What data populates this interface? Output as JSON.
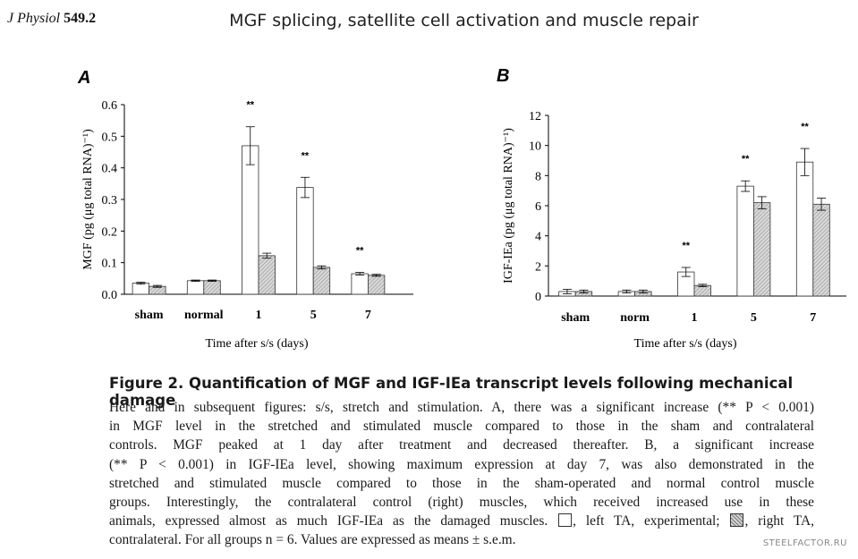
{
  "header": {
    "journal": "J Physiol",
    "volume": "549.2",
    "running_title": "MGF splicing, satellite cell activation and muscle repair"
  },
  "chart_data": [
    {
      "panel": "A",
      "type": "bar",
      "ylabel": "MGF (pg (μg total RNA)⁻¹)",
      "xlabel": "Time after s/s (days)",
      "categories": [
        "sham",
        "normal",
        "1",
        "5",
        "7"
      ],
      "ylim": [
        0,
        0.6
      ],
      "yticks": [
        "0.0",
        "0.1",
        "0.2",
        "0.3",
        "0.4",
        "0.5",
        "0.6"
      ],
      "series": [
        {
          "values": [
            0.035,
            0.043,
            0.47,
            0.338,
            0.065
          ],
          "errors": [
            0.003,
            0.002,
            0.06,
            0.032,
            0.004
          ],
          "fill": "#ffffff"
        },
        {
          "values": [
            0.025,
            0.043,
            0.122,
            0.085,
            0.06
          ],
          "errors": [
            0.003,
            0.002,
            0.008,
            0.005,
            0.003
          ],
          "fill": "#c8c8c8"
        }
      ],
      "significance": [
        null,
        null,
        "**",
        "**",
        "**"
      ]
    },
    {
      "panel": "B",
      "type": "bar",
      "ylabel": "IGF-IEa (pg (μg total RNA)⁻¹)",
      "xlabel": "Time after s/s (days)",
      "categories": [
        "sham",
        "norm",
        "1",
        "5",
        "7"
      ],
      "ylim": [
        0,
        12
      ],
      "yticks": [
        "0",
        "2",
        "4",
        "6",
        "8",
        "10",
        "12"
      ],
      "series": [
        {
          "values": [
            0.3,
            0.3,
            1.6,
            7.3,
            8.9
          ],
          "errors": [
            0.15,
            0.1,
            0.3,
            0.35,
            0.9
          ],
          "fill": "#ffffff"
        },
        {
          "values": [
            0.3,
            0.3,
            0.7,
            6.2,
            6.1
          ],
          "errors": [
            0.1,
            0.1,
            0.08,
            0.4,
            0.4
          ],
          "fill": "#c8c8c8"
        }
      ],
      "significance": [
        null,
        null,
        "**",
        "**",
        "**"
      ]
    }
  ],
  "caption": {
    "title": "Figure 2. Quantification of MGF and IGF-IEa transcript levels following mechanical damage",
    "lines": [
      "Here and in subsequent figures: s/s, stretch and stimulation. A, there was a significant increase (** P < 0.001)",
      "in MGF level in the stretched and stimulated muscle compared to those in the sham and contralateral",
      "controls. MGF peaked at 1 day after treatment and decreased thereafter. B, a significant increase",
      "(** P < 0.001) in IGF-IEa level, showing maximum expression at day 7, was also demonstrated in the",
      "stretched and stimulated muscle compared to those in the sham-operated and normal control muscle",
      "groups. Interestingly, the contralateral control (right) muscles, which received increased use in these"
    ],
    "line7_pre": "animals, expressed almost as much IGF-IEa as the damaged muscles.",
    "line7_mid": ", left TA, experimental;",
    "line7_post": ", right TA,",
    "line8": "contralateral. For all groups n = 6. Values are expressed as means ± s.e.m."
  },
  "watermark": "STEELFACTOR.RU"
}
